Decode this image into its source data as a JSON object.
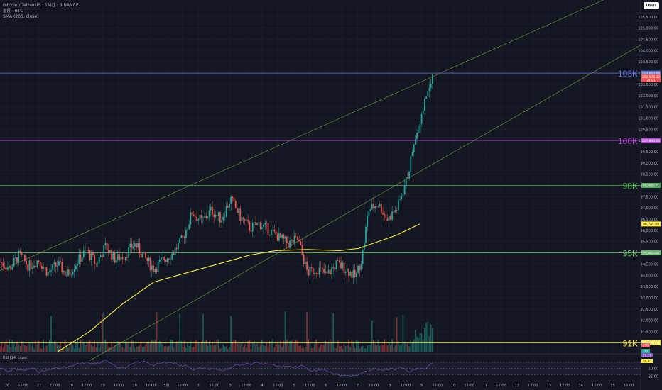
{
  "header": {
    "title": "Bitcoin / TetherUS · 1시간 · BINANCE",
    "volume_label": "볼륨 · BTC",
    "sma_label": "SMA (200, close)",
    "rsi_label": "RSI (14, close)",
    "currency": "USDT"
  },
  "colors": {
    "background": "#131722",
    "up": "#26a69a",
    "down": "#ef5350",
    "sma": "#ffeb3b",
    "line_103k": "#5b6bd6",
    "line_100k": "#b43cd8",
    "line_98k": "#4caf50",
    "line_95k": "#66bb6a",
    "line_91k": "#ffeb3b",
    "channel": "#8bc34a",
    "rsi": "#7e57c2"
  },
  "chart_data": {
    "type": "candlestick",
    "title": "Bitcoin / TetherUS · 1시간 · BINANCE",
    "price_axis_ticks": [
      "105,500.00",
      "105,000.00",
      "104,500.00",
      "104,000.00",
      "103,500.00",
      "103,000.00",
      "102,500.00",
      "102,000.00",
      "101,500.00",
      "101,000.00",
      "100,500.00",
      "100,000.00",
      "99,500.00",
      "99,000.00",
      "98,500.00",
      "98,000.00",
      "97,500.00",
      "97,000.00",
      "96,500.00",
      "96,000.00",
      "95,500.00",
      "95,000.00",
      "94,500.00",
      "94,000.00",
      "93,500.00",
      "93,000.00",
      "92,500.00",
      "92,000.00",
      "91,500.00",
      "91,000.00"
    ],
    "price_range": [
      90600,
      106000
    ],
    "time_axis_ticks": [
      "26",
      "12:00",
      "27",
      "12:00",
      "28",
      "12:00",
      "29",
      "12:00",
      "30",
      "12:00",
      "5월",
      "12:00",
      "2",
      "12:00",
      "3",
      "12:00",
      "4",
      "12:00",
      "5",
      "12:00",
      "6",
      "12:00",
      "7",
      "12:00",
      "8",
      "12:00",
      "9",
      "12:00",
      "10",
      "12:00",
      "11",
      "12:00",
      "12",
      "12:00",
      "13",
      "12:00",
      "14",
      "12:00",
      "15",
      "12:00"
    ],
    "horizontal_levels": [
      {
        "label": "103K",
        "price": 103000,
        "tag": "103,000.00",
        "color": "#5b6bd6"
      },
      {
        "label": "100K",
        "price": 100000,
        "tag": "100,000.00",
        "color": "#b43cd8"
      },
      {
        "label": "98K",
        "price": 98000,
        "tag": "98,000.71",
        "color": "#4caf50"
      },
      {
        "label": "95K",
        "price": 95000,
        "tag": "95,000.00",
        "color": "#66bb6a"
      },
      {
        "label": "91K",
        "price": 91000,
        "tag": "91,000.00",
        "color": "#ffeb3b"
      }
    ],
    "last_price": {
      "price": 102976.32,
      "tag": "102,976.32",
      "countdown": "34:01"
    },
    "sma_last": {
      "price": 96284.69,
      "tag": "96,284.69"
    },
    "volume_tags": [
      "290",
      "39"
    ],
    "rsi": {
      "ticks": [
        "50.00",
        "25.00"
      ],
      "tags": [
        "79.39",
        "76.03"
      ],
      "range": [
        10,
        95
      ]
    },
    "channel_lines": [
      {
        "from": [
          0,
          94200
        ],
        "to": [
          1.0,
          107000
        ]
      },
      {
        "from": [
          0.14,
          90200
        ],
        "to": [
          1.0,
          104250
        ]
      }
    ],
    "sma_path": [
      [
        0.09,
        90600
      ],
      [
        0.14,
        91500
      ],
      [
        0.19,
        92700
      ],
      [
        0.24,
        93700
      ],
      [
        0.29,
        94100
      ],
      [
        0.34,
        94500
      ],
      [
        0.39,
        94900
      ],
      [
        0.43,
        95100
      ],
      [
        0.48,
        95150
      ],
      [
        0.53,
        95100
      ],
      [
        0.56,
        95200
      ],
      [
        0.59,
        95500
      ],
      [
        0.62,
        95800
      ],
      [
        0.655,
        96284
      ]
    ],
    "price_path": [
      [
        0,
        94600
      ],
      [
        0.015,
        94300
      ],
      [
        0.03,
        94900
      ],
      [
        0.045,
        94400
      ],
      [
        0.06,
        94700
      ],
      [
        0.075,
        94100
      ],
      [
        0.09,
        94500
      ],
      [
        0.105,
        94000
      ],
      [
        0.12,
        94600
      ],
      [
        0.135,
        95100
      ],
      [
        0.15,
        94500
      ],
      [
        0.165,
        95300
      ],
      [
        0.18,
        94700
      ],
      [
        0.195,
        94900
      ],
      [
        0.21,
        95400
      ],
      [
        0.225,
        94800
      ],
      [
        0.24,
        94300
      ],
      [
        0.255,
        94700
      ],
      [
        0.27,
        95000
      ],
      [
        0.285,
        95600
      ],
      [
        0.3,
        96800
      ],
      [
        0.315,
        96400
      ],
      [
        0.33,
        96900
      ],
      [
        0.345,
        96500
      ],
      [
        0.36,
        97400
      ],
      [
        0.375,
        96600
      ],
      [
        0.39,
        96100
      ],
      [
        0.405,
        96300
      ],
      [
        0.42,
        96000
      ],
      [
        0.435,
        95700
      ],
      [
        0.45,
        95400
      ],
      [
        0.465,
        95600
      ],
      [
        0.48,
        94100
      ],
      [
        0.495,
        94300
      ],
      [
        0.51,
        94000
      ],
      [
        0.525,
        94500
      ],
      [
        0.54,
        94300
      ],
      [
        0.555,
        93900
      ],
      [
        0.565,
        94800
      ],
      [
        0.575,
        96900
      ],
      [
        0.59,
        97200
      ],
      [
        0.605,
        96500
      ],
      [
        0.62,
        97000
      ],
      [
        0.635,
        98300
      ],
      [
        0.645,
        99600
      ],
      [
        0.655,
        100800
      ],
      [
        0.665,
        102000
      ],
      [
        0.675,
        102976
      ]
    ]
  }
}
